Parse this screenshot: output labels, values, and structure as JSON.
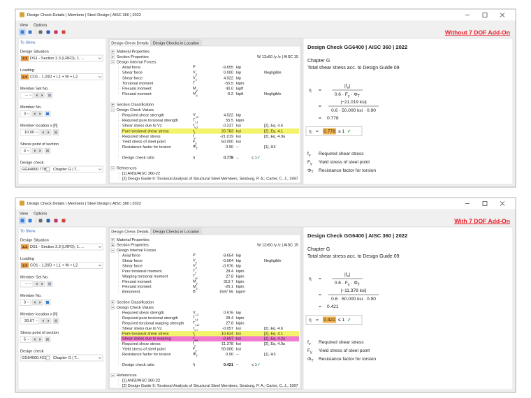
{
  "windows": [
    {
      "title": "Design Check Details | Members | Steel Design | AISC 360 | 2022",
      "menu": [
        "View",
        "Options"
      ],
      "annotation": "Without 7 DOF Add-On",
      "left_panel": {
        "heading": "To Show",
        "fields": [
          {
            "label": "Design Situation",
            "badge": "2.3",
            "value": "DS1 - Section 2.3 (LRFD), 1. ..."
          },
          {
            "label": "Loading",
            "badge": "2.3",
            "value": "CO1 - 1.20D + L1 + W + L2"
          },
          {
            "label": "Member Set No.",
            "value": "--"
          },
          {
            "label": "Member No.",
            "value": "3"
          },
          {
            "label": "Member location x [ft]",
            "value": "10.00"
          },
          {
            "label": "Stress point of section",
            "value": "4"
          },
          {
            "label": "Design check",
            "value": "GG6400",
            "ratio": "0.778",
            "extra": "Chapter G | T..."
          }
        ]
      },
      "tabs": [
        "Design Check Details",
        "Design Checks in Location"
      ],
      "tree": [
        {
          "label": "Material Properties",
          "expanded": false
        },
        {
          "label": "Section Properties",
          "expanded": false,
          "note": "W 12x50 /y /z | AISC 15"
        },
        {
          "label": "Design Internal Forces",
          "expanded": true,
          "rows": [
            {
              "label": "Axial force",
              "symbol": [
                "P"
              ],
              "value": "-9.655",
              "unit": "kip"
            },
            {
              "label": "Shear force",
              "symbol": [
                "V",
                {
                  "sub": "y"
                }
              ],
              "value": "0.000",
              "unit": "kip",
              "note": "Negligible"
            },
            {
              "label": "Shear force",
              "symbol": [
                "V",
                {
                  "sub": "z"
                }
              ],
              "value": "4.022",
              "unit": "kip"
            },
            {
              "label": "Torsional moment",
              "symbol": [
                "T"
              ],
              "value": "-55.5",
              "unit": "kipin"
            },
            {
              "label": "Flexural moment",
              "symbol": [
                "M",
                {
                  "sub": "y"
                }
              ],
              "value": "40.0",
              "unit": "kipft"
            },
            {
              "label": "Flexural moment",
              "symbol": [
                "M",
                {
                  "sub": "z"
                }
              ],
              "value": "-0.2",
              "unit": "kipft",
              "note": "Negligible"
            }
          ]
        },
        {
          "label": "Section Classification",
          "expanded": false
        },
        {
          "label": "Design Check Values",
          "expanded": true,
          "rows": [
            {
              "label": "Required shear strength",
              "symbol": [
                "V",
                {
                  "sub": "r,z"
                }
              ],
              "value": "4.022",
              "unit": "kip"
            },
            {
              "label": "Required pure torsional strength",
              "symbol": [
                "T",
                {
                  "sub": "r,t"
                }
              ],
              "value": "55.5",
              "unit": "kipin"
            },
            {
              "label": "Shear stress due to Vz",
              "symbol": [
                "τ",
                {
                  "sub": "v,z"
                }
              ],
              "value": "-0.237",
              "unit": "ksi",
              "note": "[2], Eq. 4.6"
            },
            {
              "label": "Pure torsional shear stress",
              "symbol": [
                "τ",
                {
                  "sub": "t"
                }
              ],
              "value": "20.783",
              "unit": "ksi",
              "note": "[2], Eq. 4.1",
              "highlight": "#f4f46c"
            },
            {
              "label": "Required shear stress",
              "symbol": [
                "f",
                {
                  "sub": "v"
                }
              ],
              "value": "-21.019",
              "unit": "ksi",
              "note": "[2], Eq. 4.9a"
            },
            {
              "label": "Yield stress of steel point",
              "symbol": [
                "F",
                {
                  "sub": "y"
                }
              ],
              "value": "50.000",
              "unit": "ksi"
            },
            {
              "label": "Resistance factor for torsion",
              "symbol": [
                "Φ",
                {
                  "sub": "T"
                }
              ],
              "value": "0.90",
              "unit": "--",
              "note": "[1], H3"
            },
            {
              "label": "Design check ratio",
              "symbol": [
                "η"
              ],
              "value": "0.778",
              "unit": "--",
              "limit": "≤ 1",
              "status": "✓"
            }
          ]
        },
        {
          "label": "References",
          "expanded": true,
          "rows": [
            {
              "label": "[1] ANSI/AISC 360-22"
            },
            {
              "label": "[2] Design Guide 9: Torsional Analysis of Structural Steel Members, Seaburg, P. A.; Carter, C. J., 1997"
            }
          ]
        }
      ],
      "details": {
        "title": "Design Check GG6400 | AISC 360 | 2022",
        "chapter": "Chapter G",
        "description": "Total shear stress acc. to Design Guide 09",
        "formula": {
          "lhs": "η",
          "eq": "=",
          "fraction1": {
            "num": [
              "|f",
              {
                "sub": "v"
              },
              "|"
            ],
            "den": [
              "0.6 · F",
              {
                "sub": "y"
              },
              " · Φ",
              {
                "sub": "T"
              }
            ]
          },
          "fraction2": {
            "num": [
              "|−21.019 ksi|"
            ],
            "den": [
              "0.6 · 50.000 ksi · 0.90"
            ]
          },
          "result": "0.778",
          "check": {
            "value": "0.778",
            "limit": "≤ 1",
            "status": "✓"
          }
        },
        "legend": [
          {
            "symbol": [
              "f",
              {
                "sub": "v"
              }
            ],
            "text": "Required shear stress"
          },
          {
            "symbol": [
              "F",
              {
                "sub": "y"
              }
            ],
            "text": "Yield stress of steel point"
          },
          {
            "symbol": [
              "Φ",
              {
                "sub": "T"
              }
            ],
            "text": "Resistance factor for torsion"
          }
        ]
      }
    },
    {
      "title": "Design Check Details | Members | Steel Design | AISC 360 | 2022",
      "menu": [
        "View",
        "Options"
      ],
      "annotation": "With 7 DOF Add-On",
      "left_panel": {
        "heading": "To Show",
        "fields": [
          {
            "label": "Design Situation",
            "badge": "2.3",
            "value": "DS1 - Section 2.3 (LRFD), 1. ..."
          },
          {
            "label": "Loading",
            "badge": "2.3",
            "value": "CO1 - 1.20D + L1 + W + L2"
          },
          {
            "label": "Member Set No.",
            "value": "--"
          },
          {
            "label": "Member No.",
            "value": "3"
          },
          {
            "label": "Member location x [ft]",
            "value": "26.67"
          },
          {
            "label": "Stress point of section",
            "value": "5"
          },
          {
            "label": "Design check",
            "value": "GG6400",
            "ratio": "0.421",
            "extra": "Chapter G | T..."
          }
        ]
      },
      "tabs": [
        "Design Check Details",
        "Design Checks in Location"
      ],
      "tree": [
        {
          "label": "Material Properties",
          "expanded": false
        },
        {
          "label": "Section Properties",
          "expanded": false,
          "note": "W 12x50 /y /z | AISC 15"
        },
        {
          "label": "Design Internal Forces",
          "expanded": true,
          "rows": [
            {
              "label": "Axial force",
              "symbol": [
                "P"
              ],
              "value": "-9.654",
              "unit": "kip"
            },
            {
              "label": "Shear force",
              "symbol": [
                "V",
                {
                  "sub": "y"
                }
              ],
              "value": "-0.064",
              "unit": "kip",
              "note": "Negligible"
            },
            {
              "label": "Shear force",
              "symbol": [
                "V",
                {
                  "sub": "z"
                }
              ],
              "value": "-0.976",
              "unit": "kip"
            },
            {
              "label": "Pure torsional moment",
              "symbol": [
                "T",
                {
                  "sub": "t"
                }
              ],
              "value": "28.4",
              "unit": "kipin"
            },
            {
              "label": "Warping torsional moment",
              "symbol": [
                "T",
                {
                  "sub": "w"
                }
              ],
              "value": "27.8",
              "unit": "kipin"
            },
            {
              "label": "Flexural moment",
              "symbol": [
                "M",
                {
                  "sub": "y"
                }
              ],
              "value": "310.7",
              "unit": "kipin"
            },
            {
              "label": "Flexural moment",
              "symbol": [
                "M",
                {
                  "sub": "z"
                }
              ],
              "value": "-26.1",
              "unit": "kipin"
            },
            {
              "label": "Bimoment",
              "symbol": [
                "B"
              ],
              "value": "1597.55",
              "unit": "kipin²"
            }
          ]
        },
        {
          "label": "Section Classification",
          "expanded": false
        },
        {
          "label": "Design Check Values",
          "expanded": true,
          "rows": [
            {
              "label": "Required shear strength",
              "symbol": [
                "V",
                {
                  "sub": "r,z"
                }
              ],
              "value": "0.976",
              "unit": "kip"
            },
            {
              "label": "Required pure torsional strength",
              "symbol": [
                "T",
                {
                  "sub": "r,t"
                }
              ],
              "value": "28.4",
              "unit": "kipin"
            },
            {
              "label": "Required torsional warping strength",
              "symbol": [
                "T",
                {
                  "sub": "r,w"
                }
              ],
              "value": "27.8",
              "unit": "kipin"
            },
            {
              "label": "Shear stress due to Vz",
              "symbol": [
                "τ",
                {
                  "sub": "v,z"
                }
              ],
              "value": "-0.057",
              "unit": "ksi",
              "note": "[2], Eq. 4.6"
            },
            {
              "label": "Pure torsional shear stress",
              "symbol": [
                "τ",
                {
                  "sub": "t"
                }
              ],
              "value": "-10.624",
              "unit": "ksi",
              "note": "[2], Eq. 4.1",
              "highlight": "#f4f46c"
            },
            {
              "label": "Shear stress due to warping",
              "symbol": [
                "τ",
                {
                  "sub": "ws"
                }
              ],
              "value": "-0.697",
              "unit": "ksi",
              "note": "[2], Eq. 4.2a",
              "highlight": "#f07ad0"
            },
            {
              "label": "Required shear stress",
              "symbol": [
                "f",
                {
                  "sub": "v"
                }
              ],
              "value": "-11.378",
              "unit": "ksi",
              "note": "[2], Eq. 4.9a"
            },
            {
              "label": "Yield stress of steel point",
              "symbol": [
                "F",
                {
                  "sub": "y"
                }
              ],
              "value": "50.000",
              "unit": "ksi"
            },
            {
              "label": "Resistance factor for torsion",
              "symbol": [
                "Φ",
                {
                  "sub": "T"
                }
              ],
              "value": "0.90",
              "unit": "--",
              "note": "[1], H3"
            },
            {
              "label": "Design check ratio",
              "symbol": [
                "η"
              ],
              "value": "0.421",
              "unit": "--",
              "limit": "≤ 1",
              "status": "✓"
            }
          ]
        },
        {
          "label": "References",
          "expanded": true,
          "rows": [
            {
              "label": "[1] ANSI/AISC 360-22"
            },
            {
              "label": "[2] Design Guide 9: Torsional Analysis of Structural Steel Members, Seaburg, P. A.; Carter, C. J., 1997"
            }
          ]
        }
      ],
      "details": {
        "title": "Design Check GG6400 | AISC 360 | 2022",
        "chapter": "Chapter G",
        "description": "Total shear stress acc. to Design Guide 09",
        "formula": {
          "lhs": "η",
          "eq": "=",
          "fraction1": {
            "num": [
              "|f",
              {
                "sub": "v"
              },
              "|"
            ],
            "den": [
              "0.6 · F",
              {
                "sub": "y"
              },
              " · Φ",
              {
                "sub": "T"
              }
            ]
          },
          "fraction2": {
            "num": [
              "|−11.378 ksi|"
            ],
            "den": [
              "0.6 · 50.000 ksi · 0.90"
            ]
          },
          "result": "0.421",
          "check": {
            "value": "0.421",
            "limit": "≤ 1",
            "status": "✓"
          }
        },
        "legend": [
          {
            "symbol": [
              "f",
              {
                "sub": "v"
              }
            ],
            "text": "Required shear stress"
          },
          {
            "symbol": [
              "F",
              {
                "sub": "y"
              }
            ],
            "text": "Yield stress of steel point"
          },
          {
            "symbol": [
              "Φ",
              {
                "sub": "T"
              }
            ],
            "text": "Resistance factor for torsion"
          }
        ]
      }
    }
  ]
}
